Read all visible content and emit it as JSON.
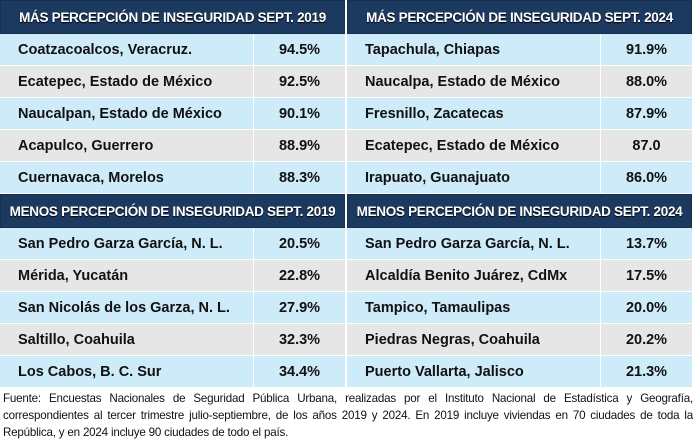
{
  "tables": [
    {
      "title": "MÁS PERCEPCIÓN DE INSEGURIDAD SEPT. 2019",
      "rows": [
        {
          "city": "Coatzacoalcos, Veracruz.",
          "value": "94.5%"
        },
        {
          "city": "Ecatepec, Estado de México",
          "value": "92.5%"
        },
        {
          "city": "Naucalpan, Estado de México",
          "value": "90.1%"
        },
        {
          "city": "Acapulco, Guerrero",
          "value": "88.9%"
        },
        {
          "city": "Cuernavaca, Morelos",
          "value": "88.3%"
        }
      ]
    },
    {
      "title": "MÁS PERCEPCIÓN DE INSEGURIDAD SEPT. 2024",
      "rows": [
        {
          "city": "Tapachula, Chiapas",
          "value": "91.9%"
        },
        {
          "city": "Naucalpa, Estado de México",
          "value": "88.0%"
        },
        {
          "city": "Fresnillo, Zacatecas",
          "value": "87.9%"
        },
        {
          "city": "Ecatepec, Estado de México",
          "value": "87.0"
        },
        {
          "city": "Irapuato, Guanajuato",
          "value": "86.0%"
        }
      ]
    },
    {
      "title": "MENOS PERCEPCIÓN DE INSEGURIDAD SEPT. 2019",
      "rows": [
        {
          "city": "San Pedro Garza García, N. L.",
          "value": "20.5%"
        },
        {
          "city": "Mérida, Yucatán",
          "value": "22.8%"
        },
        {
          "city": "San Nicolás de los Garza, N. L.",
          "value": "27.9%"
        },
        {
          "city": "Saltillo, Coahuila",
          "value": "32.3%"
        },
        {
          "city": "Los Cabos, B. C. Sur",
          "value": "34.4%"
        }
      ]
    },
    {
      "title": "MENOS PERCEPCIÓN DE INSEGURIDAD SEPT. 2024",
      "rows": [
        {
          "city": "San Pedro Garza García, N. L.",
          "value": "13.7%"
        },
        {
          "city": "Alcaldía Benito Juárez, CdMx",
          "value": "17.5%"
        },
        {
          "city": "Tampico, Tamaulipas",
          "value": "20.0%"
        },
        {
          "city": "Piedras Negras, Coahuila",
          "value": "20.2%"
        },
        {
          "city": "Puerto Vallarta, Jalisco",
          "value": "21.3%"
        }
      ]
    }
  ],
  "footnote": "Fuente: Encuestas Nacionales de Seguridad Pública Urbana, realizadas por el Instituto Nacional de Estadística y Geografía, correspondientes al tercer trimestre julio-septiembre, de los años 2019 y 2024. En 2019 incluye viviendas en 70 ciudades de toda la República, y en 2024 incluye 90 ciudades de todo el país."
}
